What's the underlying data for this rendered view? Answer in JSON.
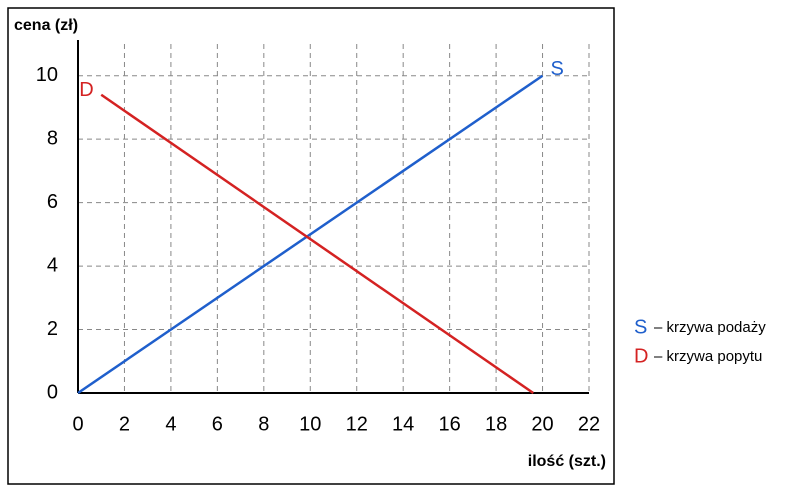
{
  "chart_data": {
    "type": "line",
    "y_label": "cena (zł)",
    "x_label": "ilość (szt.)",
    "xlim": [
      0,
      22
    ],
    "ylim": [
      0,
      11
    ],
    "xticks": [
      0,
      2,
      4,
      6,
      8,
      10,
      12,
      14,
      16,
      18,
      20,
      22
    ],
    "yticks": [
      0,
      2,
      4,
      6,
      8,
      10
    ],
    "grid": true,
    "series": [
      {
        "name": "S",
        "description": "– krzywa podaży",
        "color": "#1f5fcc",
        "x": [
          0,
          20
        ],
        "values": [
          0,
          10
        ]
      },
      {
        "name": "D",
        "description": "– krzywa popytu",
        "color": "#d42222",
        "x": [
          1,
          19.6
        ],
        "values": [
          9.4,
          0
        ]
      }
    ]
  }
}
